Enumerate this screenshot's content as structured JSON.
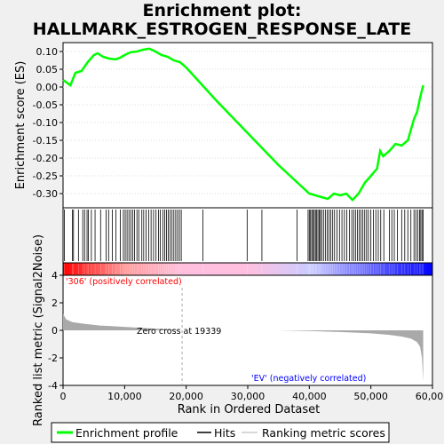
{
  "chart_data": {
    "type": "line",
    "title_line1": "Enrichment plot:",
    "title_line2": "HALLMARK_ESTROGEN_RESPONSE_LATE",
    "es_panel": {
      "ylabel": "Enrichment score (ES)",
      "ylim": [
        -0.34,
        0.125
      ],
      "yticks": [
        "0.10",
        "0.05",
        "0.00",
        "-0.05",
        "-0.10",
        "-0.15",
        "-0.20",
        "-0.25",
        "-0.30"
      ],
      "ytick_values": [
        0.1,
        0.05,
        0.0,
        -0.05,
        -0.1,
        -0.15,
        -0.2,
        -0.25,
        -0.3
      ],
      "x": [
        0,
        1200,
        2000,
        3000,
        4000,
        5000,
        5600,
        6500,
        7500,
        8500,
        9200,
        10000,
        11000,
        12000,
        13000,
        14000,
        15000,
        16000,
        17000,
        18000,
        19000,
        20000,
        25000,
        30000,
        35000,
        40000,
        42000,
        43000,
        44000,
        45000,
        46000,
        47000,
        48000,
        49000,
        50000,
        51000,
        51500,
        52000,
        53000,
        54000,
        55000,
        56000,
        57000,
        57500,
        58000,
        58500
      ],
      "y": [
        0.02,
        0.005,
        0.04,
        0.045,
        0.07,
        0.09,
        0.095,
        0.085,
        0.08,
        0.078,
        0.082,
        0.09,
        0.098,
        0.1,
        0.105,
        0.108,
        0.1,
        0.09,
        0.085,
        0.075,
        0.07,
        0.055,
        -0.04,
        -0.13,
        -0.22,
        -0.3,
        -0.31,
        -0.315,
        -0.3,
        -0.305,
        -0.3,
        -0.318,
        -0.3,
        -0.27,
        -0.25,
        -0.23,
        -0.18,
        -0.195,
        -0.18,
        -0.16,
        -0.165,
        -0.15,
        -0.09,
        -0.07,
        -0.03,
        0.005
      ],
      "color": "#00ff00"
    },
    "hits": {
      "positions": [
        200,
        1500,
        1700,
        2500,
        3200,
        3500,
        3900,
        4100,
        4600,
        5200,
        6100,
        7000,
        7400,
        8000,
        8600,
        9300,
        9800,
        10100,
        10400,
        10700,
        11000,
        11300,
        11600,
        12000,
        12300,
        12800,
        13100,
        13500,
        13900,
        14300,
        14700,
        15100,
        15500,
        15800,
        16200,
        16500,
        16800,
        17100,
        17400,
        17700,
        18000,
        18300,
        18600,
        18900,
        19200,
        22700,
        29900,
        32300,
        38000,
        39800,
        40000,
        40200,
        40400,
        40600,
        40800,
        41000,
        41200,
        41400,
        41600,
        41800,
        42000,
        42300,
        42600,
        42900,
        43200,
        43500,
        43800,
        44100,
        44500,
        44900,
        45300,
        45700,
        46100,
        46500,
        46900,
        47200,
        47500,
        47800,
        48100,
        48400,
        48700,
        49000,
        49300,
        49600,
        50000,
        50400,
        50800,
        51200,
        51600,
        52100,
        53000,
        53400,
        53800,
        54300,
        55000,
        55500,
        56000,
        56500,
        57000,
        57300,
        57600,
        57900,
        58100,
        58300,
        58500
      ],
      "color": "#000000"
    },
    "ranking_metric": {
      "ylabel": "Ranked list metric (Signal2Noise)",
      "ylim": [
        -4,
        4
      ],
      "yticks": [
        "4",
        "2",
        "0",
        "-2",
        "-4"
      ],
      "ytick_values": [
        4,
        2,
        0,
        -2,
        -4
      ],
      "x": [
        0,
        500,
        1500,
        3000,
        6000,
        10000,
        14000,
        17000,
        19339,
        25000,
        35000,
        40000,
        45000,
        50000,
        53000,
        55000,
        56500,
        57500,
        58000,
        58300,
        58500
      ],
      "y": [
        1.2,
        0.8,
        0.6,
        0.5,
        0.35,
        0.25,
        0.15,
        0.08,
        0.0,
        0.0,
        0.0,
        -0.05,
        -0.12,
        -0.22,
        -0.33,
        -0.45,
        -0.6,
        -0.85,
        -1.2,
        -2.0,
        -3.7
      ],
      "color": "#a9a9a9"
    },
    "color_bar": {
      "stops": [
        "#ff0000",
        "#ff9999",
        "#ffc0e0",
        "#ffc0e0",
        "#ccccff",
        "#6666ff",
        "#0000ff"
      ]
    },
    "xlabel": "Rank in Ordered Dataset",
    "xlim": [
      0,
      60000
    ],
    "xticks": [
      "0",
      "10,000",
      "20,000",
      "30,000",
      "40,000",
      "50,000",
      "60,000"
    ],
    "xtick_values": [
      0,
      10000,
      20000,
      30000,
      40000,
      50000,
      60000
    ],
    "zero_cross": 19339,
    "annotations": {
      "positive": "'306' (positively correlated)",
      "negative": "'EV' (negatively correlated)",
      "zero_cross": "Zero cross at 19339"
    },
    "annotation_colors": {
      "positive": "#ff0000",
      "negative": "#0000ff"
    },
    "legend": {
      "items": [
        "Enrichment profile",
        "Hits",
        "Ranking metric scores"
      ],
      "colors": [
        "#00ff00",
        "#000000",
        "#cccccc"
      ]
    }
  }
}
